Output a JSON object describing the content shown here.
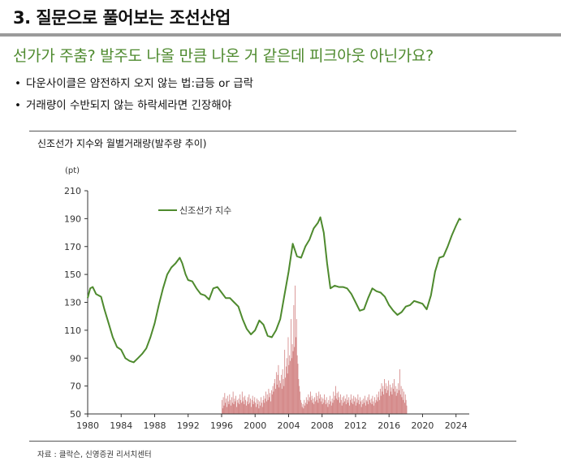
{
  "header": {
    "title": "3. 질문으로 풀어보는 조선산업",
    "subtitle": "선가가 주춤? 발주도 나올 만큼 나온 거 같은데 피크아웃 아닌가요?",
    "bullets": [
      "다운사이클은 얌전하지 오지 않는 법:급등 or 급락",
      "거래량이 수반되지 않는 하락세라면 긴장해야"
    ],
    "bullet_mark": "•"
  },
  "chart_title": "신조선가 지수와 월별거래량(발주량 추이)",
  "source": "자료 : 클락슨, 신영증권 리서치센터",
  "colors": {
    "line": "#4e8a2e",
    "bars": "#c96b6b",
    "axis": "#333333"
  },
  "chart_data": {
    "type": "line",
    "title": "신조선가 지수와 월별거래량(발주량 추이)",
    "ylabel": "(pt)",
    "xlim": [
      1980,
      2025
    ],
    "ylim": [
      50,
      210
    ],
    "xticks": [
      1980,
      1984,
      1988,
      1992,
      1996,
      2000,
      2004,
      2008,
      2012,
      2016,
      2020,
      2024
    ],
    "yticks": [
      50,
      70,
      90,
      110,
      130,
      150,
      170,
      190,
      210
    ],
    "legend": {
      "label": "신조선가 지수",
      "placement": "top-center"
    },
    "series": [
      {
        "name": "신조선가 지수",
        "points": [
          [
            1980.0,
            133
          ],
          [
            1980.3,
            140
          ],
          [
            1980.6,
            141
          ],
          [
            1981.0,
            136
          ],
          [
            1981.6,
            134
          ],
          [
            1982.0,
            125
          ],
          [
            1982.5,
            115
          ],
          [
            1983.0,
            105
          ],
          [
            1983.5,
            98
          ],
          [
            1984.0,
            96
          ],
          [
            1984.5,
            90
          ],
          [
            1985.0,
            88
          ],
          [
            1985.5,
            87
          ],
          [
            1986.0,
            90
          ],
          [
            1986.5,
            93
          ],
          [
            1987.0,
            97
          ],
          [
            1987.5,
            105
          ],
          [
            1988.0,
            115
          ],
          [
            1988.5,
            128
          ],
          [
            1989.0,
            140
          ],
          [
            1989.5,
            150
          ],
          [
            1990.0,
            155
          ],
          [
            1990.5,
            158
          ],
          [
            1991.0,
            162
          ],
          [
            1991.3,
            158
          ],
          [
            1991.7,
            150
          ],
          [
            1992.0,
            146
          ],
          [
            1992.5,
            145
          ],
          [
            1993.0,
            140
          ],
          [
            1993.5,
            136
          ],
          [
            1994.0,
            135
          ],
          [
            1994.5,
            132
          ],
          [
            1995.0,
            140
          ],
          [
            1995.5,
            141
          ],
          [
            1996.0,
            137
          ],
          [
            1996.5,
            133
          ],
          [
            1997.0,
            133
          ],
          [
            1997.5,
            130
          ],
          [
            1998.0,
            127
          ],
          [
            1998.5,
            118
          ],
          [
            1999.0,
            111
          ],
          [
            1999.5,
            107
          ],
          [
            2000.0,
            110
          ],
          [
            2000.5,
            117
          ],
          [
            2001.0,
            114
          ],
          [
            2001.5,
            106
          ],
          [
            2002.0,
            105
          ],
          [
            2002.5,
            110
          ],
          [
            2003.0,
            118
          ],
          [
            2003.5,
            135
          ],
          [
            2004.0,
            152
          ],
          [
            2004.5,
            172
          ],
          [
            2005.0,
            163
          ],
          [
            2005.5,
            162
          ],
          [
            2006.0,
            170
          ],
          [
            2006.5,
            175
          ],
          [
            2007.0,
            183
          ],
          [
            2007.5,
            187
          ],
          [
            2007.8,
            191
          ],
          [
            2008.2,
            180
          ],
          [
            2008.6,
            158
          ],
          [
            2009.0,
            140
          ],
          [
            2009.5,
            142
          ],
          [
            2010.0,
            141
          ],
          [
            2010.5,
            141
          ],
          [
            2011.0,
            140
          ],
          [
            2011.5,
            136
          ],
          [
            2012.0,
            130
          ],
          [
            2012.5,
            124
          ],
          [
            2013.0,
            125
          ],
          [
            2013.5,
            133
          ],
          [
            2014.0,
            140
          ],
          [
            2014.5,
            138
          ],
          [
            2015.0,
            137
          ],
          [
            2015.5,
            134
          ],
          [
            2016.0,
            128
          ],
          [
            2016.5,
            124
          ],
          [
            2017.0,
            121
          ],
          [
            2017.5,
            123
          ],
          [
            2018.0,
            127
          ],
          [
            2018.5,
            128
          ],
          [
            2019.0,
            131
          ],
          [
            2019.5,
            130
          ],
          [
            2020.0,
            129
          ],
          [
            2020.5,
            125
          ],
          [
            2021.0,
            135
          ],
          [
            2021.5,
            152
          ],
          [
            2022.0,
            162
          ],
          [
            2022.5,
            163
          ],
          [
            2023.0,
            170
          ],
          [
            2023.5,
            178
          ],
          [
            2024.0,
            185
          ],
          [
            2024.4,
            190
          ],
          [
            2024.6,
            189
          ]
        ]
      }
    ],
    "volume_bars": {
      "x_start": 1996.0,
      "x_step": 0.0833,
      "baseline": 50,
      "heights": [
        60,
        54,
        62,
        56,
        65,
        58,
        61,
        55,
        63,
        59,
        57,
        64,
        60,
        56,
        62,
        58,
        66,
        57,
        61,
        59,
        63,
        55,
        60,
        58,
        61,
        57,
        64,
        60,
        58,
        66,
        59,
        62,
        57,
        63,
        60,
        56,
        59,
        62,
        57,
        64,
        58,
        61,
        55,
        60,
        63,
        57,
        59,
        62,
        58,
        55,
        61,
        57,
        60,
        54,
        59,
        56,
        62,
        58,
        55,
        60,
        63,
        58,
        61,
        66,
        59,
        64,
        60,
        68,
        62,
        65,
        59,
        67,
        64,
        70,
        66,
        72,
        75,
        68,
        80,
        71,
        78,
        85,
        69,
        74,
        72,
        78,
        68,
        82,
        75,
        70,
        96,
        76,
        84,
        90,
        79,
        105,
        85,
        92,
        88,
        118,
        90,
        100,
        95,
        128,
        98,
        142,
        105,
        118,
        92,
        86,
        75,
        70,
        66,
        60,
        58,
        55,
        57,
        54,
        60,
        56,
        58,
        62,
        57,
        60,
        64,
        59,
        62,
        66,
        60,
        63,
        58,
        61,
        57,
        62,
        59,
        65,
        60,
        63,
        58,
        66,
        61,
        64,
        59,
        62,
        57,
        61,
        58,
        64,
        60,
        57,
        62,
        58,
        55,
        60,
        57,
        63,
        59,
        56,
        61,
        58,
        66,
        60,
        63,
        70,
        61,
        65,
        60,
        66,
        62,
        58,
        64,
        60,
        56,
        62,
        58,
        63,
        59,
        61,
        57,
        64,
        60,
        58,
        62,
        56,
        60,
        64,
        58,
        61,
        57,
        63,
        59,
        62,
        56,
        61,
        58,
        64,
        60,
        57,
        62,
        59,
        55,
        60,
        57,
        61,
        58,
        63,
        56,
        60,
        59,
        62,
        57,
        64,
        60,
        58,
        61,
        57,
        63,
        59,
        56,
        62,
        58,
        60,
        64,
        59,
        62,
        66,
        60,
        68,
        63,
        72,
        66,
        70,
        64,
        75,
        68,
        72,
        65,
        70,
        67,
        74,
        63,
        71,
        66,
        69,
        64,
        72,
        68,
        75,
        66,
        70,
        63,
        68,
        65,
        72,
        67,
        82,
        64,
        70,
        62,
        68,
        60,
        66,
        58,
        64,
        60,
        56
      ]
    }
  }
}
